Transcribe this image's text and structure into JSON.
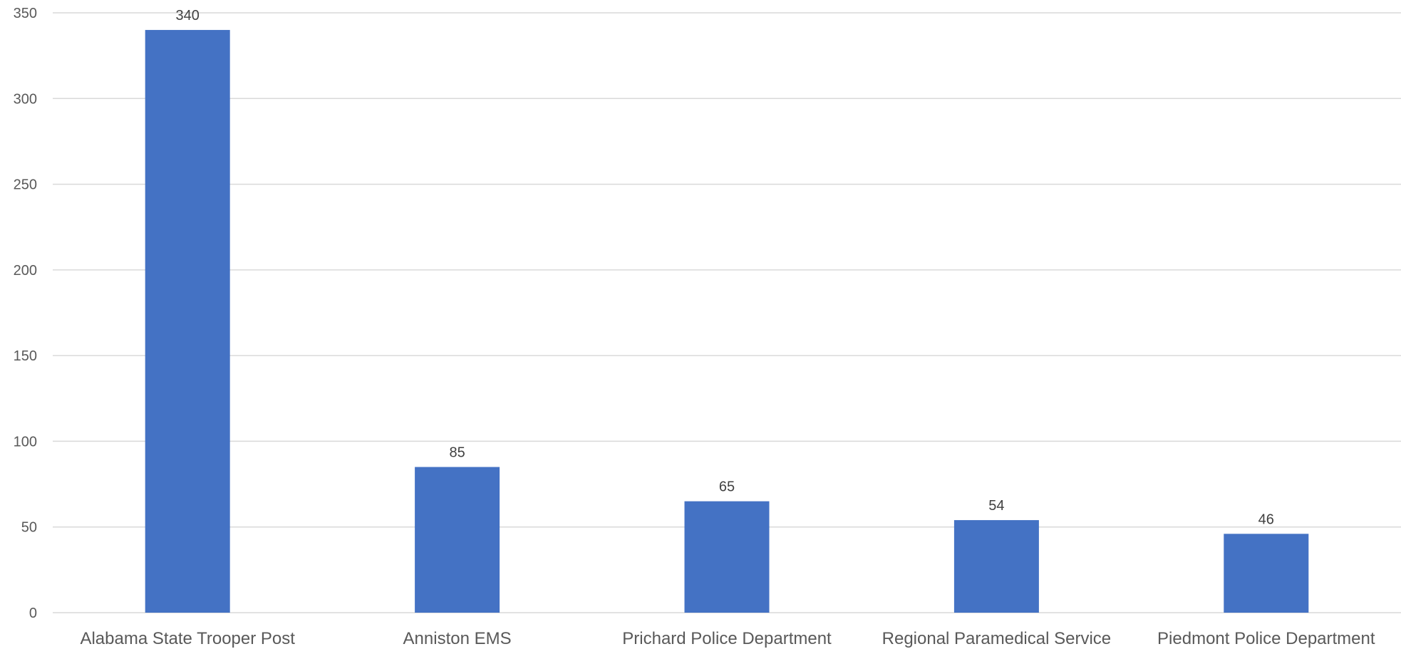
{
  "chart_data": {
    "type": "bar",
    "title": "",
    "xlabel": "",
    "ylabel": "",
    "categories": [
      "Alabama State Trooper Post",
      "Anniston EMS",
      "Prichard Police Department",
      "Regional Paramedical Service",
      "Piedmont Police Department"
    ],
    "values": [
      340,
      85,
      65,
      54,
      46
    ],
    "data_labels": [
      "340",
      "85",
      "65",
      "54",
      "46"
    ],
    "yticks": [
      0,
      50,
      100,
      150,
      200,
      250,
      300,
      350
    ],
    "ytick_labels": [
      "0",
      "50",
      "100",
      "150",
      "200",
      "250",
      "300",
      "350"
    ],
    "ylim": [
      0,
      350
    ],
    "grid": true,
    "legend": "none",
    "bar_color": "#4472c4"
  }
}
